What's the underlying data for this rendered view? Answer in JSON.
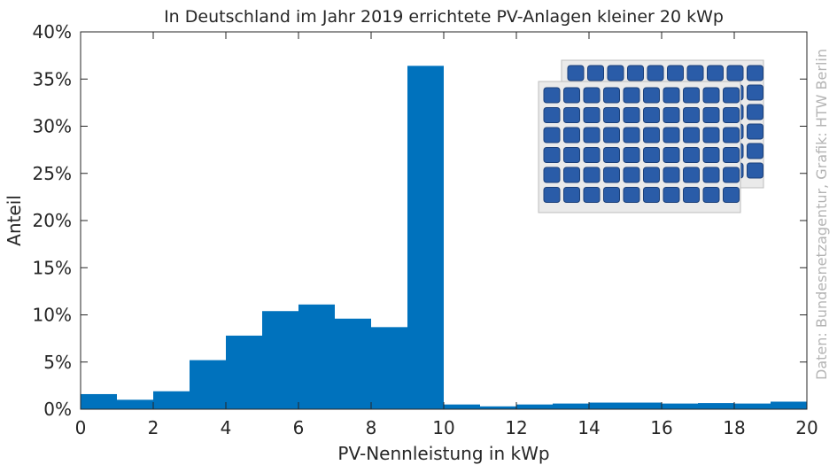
{
  "chart_data": {
    "type": "bar",
    "title": "In Deutschland im Jahr 2019 errichtete PV-Anlagen kleiner 20 kWp",
    "xlabel": "PV-Nennleistung in kWp",
    "ylabel": "Anteil",
    "credit": "Daten: Bundesnetzagentur, Grafik: HTW Berlin",
    "xlim": [
      0,
      20
    ],
    "ylim": [
      0,
      40
    ],
    "xticks": [
      "0",
      "2",
      "4",
      "6",
      "8",
      "10",
      "12",
      "14",
      "16",
      "18",
      "20"
    ],
    "yticks": [
      "0%",
      "5%",
      "10%",
      "15%",
      "20%",
      "25%",
      "30%",
      "35%",
      "40%"
    ],
    "bin_width": 1,
    "bins": [
      {
        "x_start": 0,
        "value": 1.6
      },
      {
        "x_start": 1,
        "value": 1.0
      },
      {
        "x_start": 2,
        "value": 1.9
      },
      {
        "x_start": 3,
        "value": 5.2
      },
      {
        "x_start": 4,
        "value": 7.8
      },
      {
        "x_start": 5,
        "value": 10.4
      },
      {
        "x_start": 6,
        "value": 11.1
      },
      {
        "x_start": 7,
        "value": 9.6
      },
      {
        "x_start": 8,
        "value": 8.7
      },
      {
        "x_start": 9,
        "value": 36.4
      },
      {
        "x_start": 10,
        "value": 0.5
      },
      {
        "x_start": 11,
        "value": 0.3
      },
      {
        "x_start": 12,
        "value": 0.5
      },
      {
        "x_start": 13,
        "value": 0.6
      },
      {
        "x_start": 14,
        "value": 0.7
      },
      {
        "x_start": 15,
        "value": 0.7
      },
      {
        "x_start": 16,
        "value": 0.6
      },
      {
        "x_start": 17,
        "value": 0.65
      },
      {
        "x_start": 18,
        "value": 0.6
      },
      {
        "x_start": 19,
        "value": 0.8
      }
    ],
    "bar_color": "#0072bd",
    "grid": false,
    "decoration": "solar-panel-icon"
  }
}
